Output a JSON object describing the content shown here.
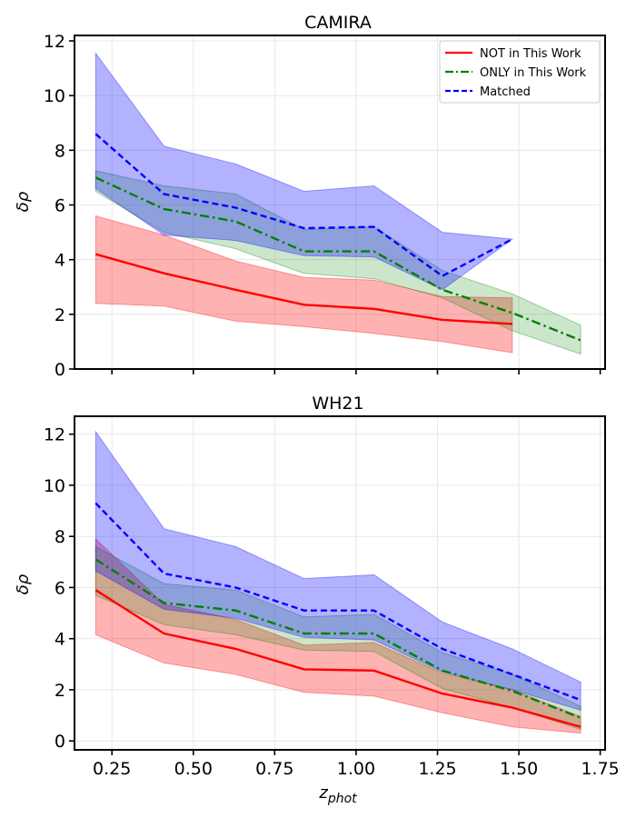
{
  "chart_data": [
    {
      "type": "line",
      "title": "CAMIRA",
      "xlabel": "",
      "ylabel": "δρ",
      "xlim": [
        0.135,
        1.765
      ],
      "ylim": [
        0,
        12.2
      ],
      "xticks": [
        "0.25",
        "0.50",
        "0.75",
        "1.00",
        "1.25",
        "1.50",
        "1.75"
      ],
      "xtick_values": [
        0.25,
        0.5,
        0.75,
        1.0,
        1.25,
        1.5,
        1.75
      ],
      "show_xtick_labels": false,
      "yticks": [
        "0",
        "2",
        "4",
        "6",
        "8",
        "10",
        "12"
      ],
      "ytick_values": [
        0,
        2,
        4,
        6,
        8,
        10,
        12
      ],
      "grid": true,
      "legend": {
        "position": "top-right",
        "entries": [
          "NOT in This Work",
          "ONLY in This Work",
          "Matched"
        ]
      },
      "series": [
        {
          "name": "NOT in This Work",
          "color": "#ff0000",
          "style": "solid",
          "x": [
            0.2,
            0.41,
            0.63,
            0.84,
            1.055,
            1.265,
            1.48
          ],
          "values": [
            4.2,
            3.5,
            2.9,
            2.35,
            2.2,
            1.8,
            1.65
          ],
          "lower": [
            2.4,
            2.3,
            1.75,
            1.55,
            1.3,
            1.0,
            0.6
          ],
          "upper": [
            5.6,
            4.9,
            3.95,
            3.35,
            3.25,
            2.65,
            2.6
          ]
        },
        {
          "name": "ONLY in This Work",
          "color": "#008000",
          "style": "dashdot",
          "x": [
            0.2,
            0.41,
            0.63,
            0.84,
            1.055,
            1.265,
            1.48,
            1.69
          ],
          "values": [
            7.0,
            5.85,
            5.4,
            4.3,
            4.3,
            2.9,
            2.05,
            1.05
          ],
          "lower": [
            6.5,
            5.0,
            4.4,
            3.5,
            3.3,
            2.6,
            1.4,
            0.55
          ],
          "upper": [
            7.25,
            6.7,
            6.4,
            5.1,
            5.2,
            3.6,
            2.75,
            1.6
          ]
        },
        {
          "name": "Matched",
          "color": "#0000ff",
          "style": "dashed",
          "x": [
            0.2,
            0.41,
            0.63,
            0.84,
            1.055,
            1.265,
            1.48
          ],
          "values": [
            8.6,
            6.4,
            5.9,
            5.15,
            5.2,
            3.4,
            4.75
          ],
          "lower": [
            6.6,
            4.9,
            4.7,
            4.15,
            4.1,
            2.9,
            4.75
          ],
          "upper": [
            11.55,
            8.15,
            7.5,
            6.5,
            6.7,
            5.0,
            4.75
          ]
        }
      ]
    },
    {
      "type": "line",
      "title": "WH21",
      "xlabel": "z_phot",
      "ylabel": "δρ",
      "xlim": [
        0.135,
        1.765
      ],
      "ylim": [
        -0.35,
        12.7
      ],
      "xticks": [
        "0.25",
        "0.50",
        "0.75",
        "1.00",
        "1.25",
        "1.50",
        "1.75"
      ],
      "xtick_values": [
        0.25,
        0.5,
        0.75,
        1.0,
        1.25,
        1.5,
        1.75
      ],
      "show_xtick_labels": true,
      "yticks": [
        "0",
        "2",
        "4",
        "6",
        "8",
        "10",
        "12"
      ],
      "ytick_values": [
        0,
        2,
        4,
        6,
        8,
        10,
        12
      ],
      "grid": true,
      "series": [
        {
          "name": "NOT in This Work",
          "color": "#ff0000",
          "style": "solid",
          "x": [
            0.2,
            0.41,
            0.63,
            0.84,
            1.055,
            1.265,
            1.48,
            1.69
          ],
          "values": [
            5.9,
            4.2,
            3.6,
            2.8,
            2.75,
            1.85,
            1.3,
            0.55
          ],
          "lower": [
            4.15,
            3.05,
            2.6,
            1.9,
            1.75,
            1.1,
            0.55,
            0.3
          ],
          "upper": [
            7.9,
            5.35,
            4.75,
            3.75,
            3.85,
            2.65,
            2.0,
            0.95
          ]
        },
        {
          "name": "ONLY in This Work",
          "color": "#008000",
          "style": "dashdot",
          "x": [
            0.2,
            0.41,
            0.63,
            0.84,
            1.055,
            1.265,
            1.48,
            1.69
          ],
          "values": [
            7.1,
            5.4,
            5.1,
            4.2,
            4.2,
            2.75,
            1.95,
            0.9
          ],
          "lower": [
            5.7,
            4.55,
            4.15,
            3.55,
            3.5,
            2.05,
            1.3,
            0.45
          ],
          "upper": [
            7.6,
            6.15,
            5.9,
            4.85,
            4.95,
            3.45,
            2.6,
            1.35
          ]
        },
        {
          "name": "Matched",
          "color": "#0000ff",
          "style": "dashed",
          "x": [
            0.2,
            0.41,
            0.63,
            0.84,
            1.055,
            1.265,
            1.48,
            1.69
          ],
          "values": [
            9.3,
            6.55,
            6.0,
            5.1,
            5.1,
            3.6,
            2.6,
            1.6
          ],
          "lower": [
            6.65,
            5.15,
            4.8,
            4.05,
            3.95,
            2.7,
            2.0,
            1.2
          ],
          "upper": [
            12.1,
            8.3,
            7.6,
            6.35,
            6.5,
            4.65,
            3.6,
            2.3
          ]
        }
      ]
    }
  ]
}
